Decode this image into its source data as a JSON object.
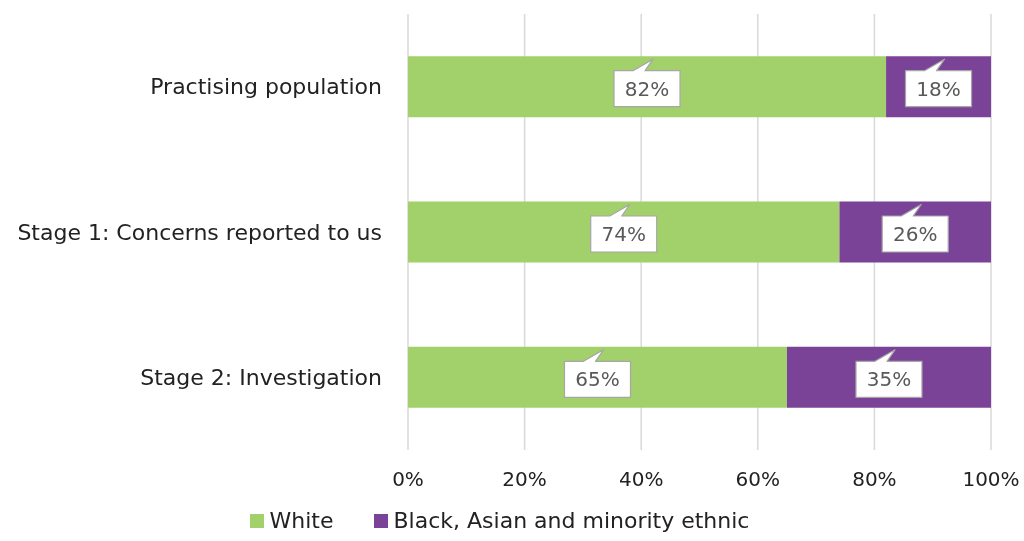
{
  "chart_data": {
    "type": "bar",
    "orientation": "horizontal",
    "stacked": true,
    "categories": [
      "Practising population",
      "Stage 1: Concerns reported to us",
      "Stage 2: Investigation"
    ],
    "series": [
      {
        "name": "White",
        "color": "#a2d06b",
        "values": [
          82,
          74,
          65
        ],
        "value_labels": [
          "82%",
          "74%",
          "65%"
        ]
      },
      {
        "name": "Black, Asian and minority ethnic",
        "color": "#7b4397",
        "values": [
          18,
          26,
          35
        ],
        "value_labels": [
          "18%",
          "26%",
          "35%"
        ]
      }
    ],
    "xlim": [
      0,
      100
    ],
    "xticks": [
      {
        "value": 0,
        "label": "0%"
      },
      {
        "value": 20,
        "label": "20%"
      },
      {
        "value": 40,
        "label": "40%"
      },
      {
        "value": 60,
        "label": "60%"
      },
      {
        "value": 80,
        "label": "80%"
      },
      {
        "value": 100,
        "label": "100%"
      }
    ],
    "grid": "x",
    "legend": "bottom"
  }
}
